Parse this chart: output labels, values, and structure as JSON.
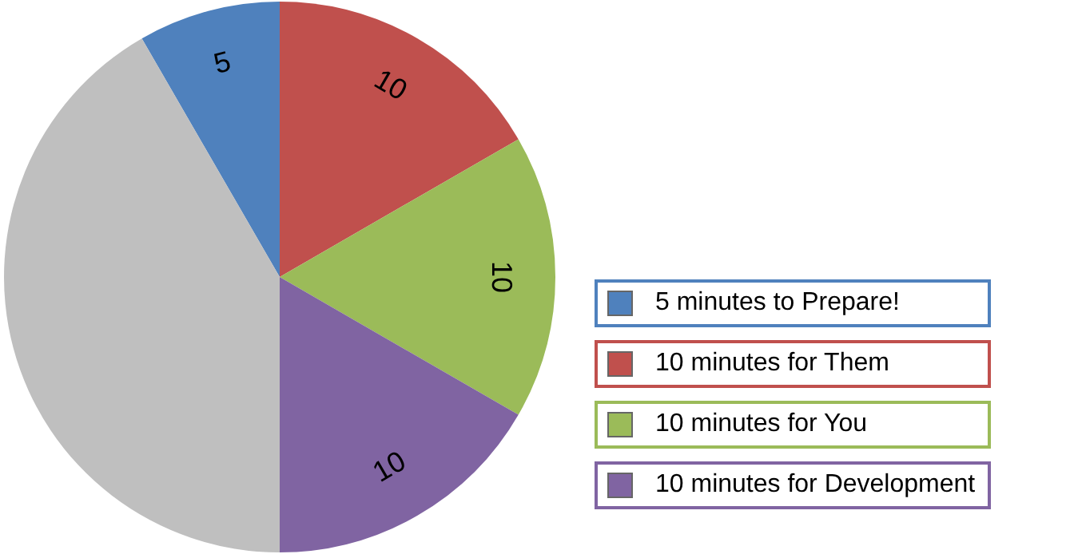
{
  "chart_data": {
    "type": "pie",
    "categories": [
      "5 minutes to Prepare!",
      "10 minutes for Them",
      "10 minutes for You",
      "10 minutes for Development",
      null
    ],
    "values": [
      5,
      10,
      10,
      10,
      25
    ],
    "colors": [
      "#4f81bd",
      "#c0504d",
      "#9bbb59",
      "#8064a2",
      "#bfbfbf"
    ],
    "value_labels": [
      "5",
      "10",
      "10",
      "10",
      null
    ],
    "legend": "right"
  }
}
